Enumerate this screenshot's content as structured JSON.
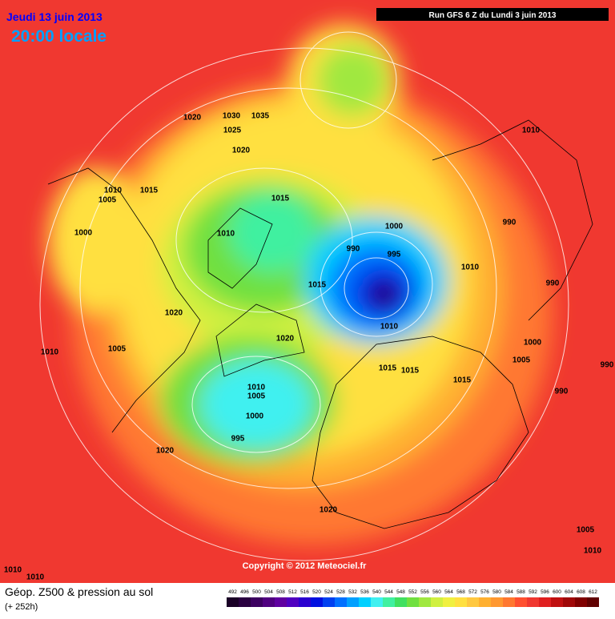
{
  "header": {
    "date": "Jeudi 13 juin 2013",
    "time": "20:00 locale",
    "run": "Run GFS 6 Z du Lundi 3 juin 2013"
  },
  "copyright": "Copyright © 2012 Meteociel.fr",
  "legend": {
    "title": "Géop. Z500 & pression au sol",
    "lead": "(+ 252h)",
    "scale": [
      {
        "value": 492,
        "color": "#1a0026"
      },
      {
        "value": 496,
        "color": "#2a0040"
      },
      {
        "value": 500,
        "color": "#3c0060"
      },
      {
        "value": 504,
        "color": "#500080"
      },
      {
        "value": 508,
        "color": "#6000a0"
      },
      {
        "value": 512,
        "color": "#5000c0"
      },
      {
        "value": 516,
        "color": "#2a00d0"
      },
      {
        "value": 520,
        "color": "#0010e0"
      },
      {
        "value": 524,
        "color": "#0040f0"
      },
      {
        "value": 528,
        "color": "#0070ff"
      },
      {
        "value": 532,
        "color": "#00a0ff"
      },
      {
        "value": 536,
        "color": "#00d0ff"
      },
      {
        "value": 540,
        "color": "#40f0f0"
      },
      {
        "value": 544,
        "color": "#40f0a0"
      },
      {
        "value": 548,
        "color": "#40e060"
      },
      {
        "value": 552,
        "color": "#70e040"
      },
      {
        "value": 556,
        "color": "#a0e840"
      },
      {
        "value": 560,
        "color": "#d0f040"
      },
      {
        "value": 564,
        "color": "#f0f040"
      },
      {
        "value": 568,
        "color": "#ffe040"
      },
      {
        "value": 572,
        "color": "#ffc840"
      },
      {
        "value": 576,
        "color": "#ffb030"
      },
      {
        "value": 580,
        "color": "#ff9830"
      },
      {
        "value": 584,
        "color": "#ff7830"
      },
      {
        "value": 588,
        "color": "#ff5030"
      },
      {
        "value": 592,
        "color": "#f03830"
      },
      {
        "value": 596,
        "color": "#e02020"
      },
      {
        "value": 600,
        "color": "#c01010"
      },
      {
        "value": 604,
        "color": "#a00808"
      },
      {
        "value": 608,
        "color": "#800000"
      },
      {
        "value": 612,
        "color": "#600000"
      }
    ]
  },
  "isobars": [
    1020,
    1030,
    1035,
    1025,
    1020,
    1010,
    1015,
    1005,
    1015,
    1000,
    1010,
    1000,
    990,
    995,
    1015,
    1010,
    990,
    990,
    1010,
    1020,
    1020,
    1010,
    1005,
    1000,
    1005,
    990,
    1015,
    1015,
    1015,
    990,
    1010,
    1005,
    1000,
    995,
    1020,
    1020,
    1005,
    1010,
    1010,
    1010,
    1010
  ]
}
